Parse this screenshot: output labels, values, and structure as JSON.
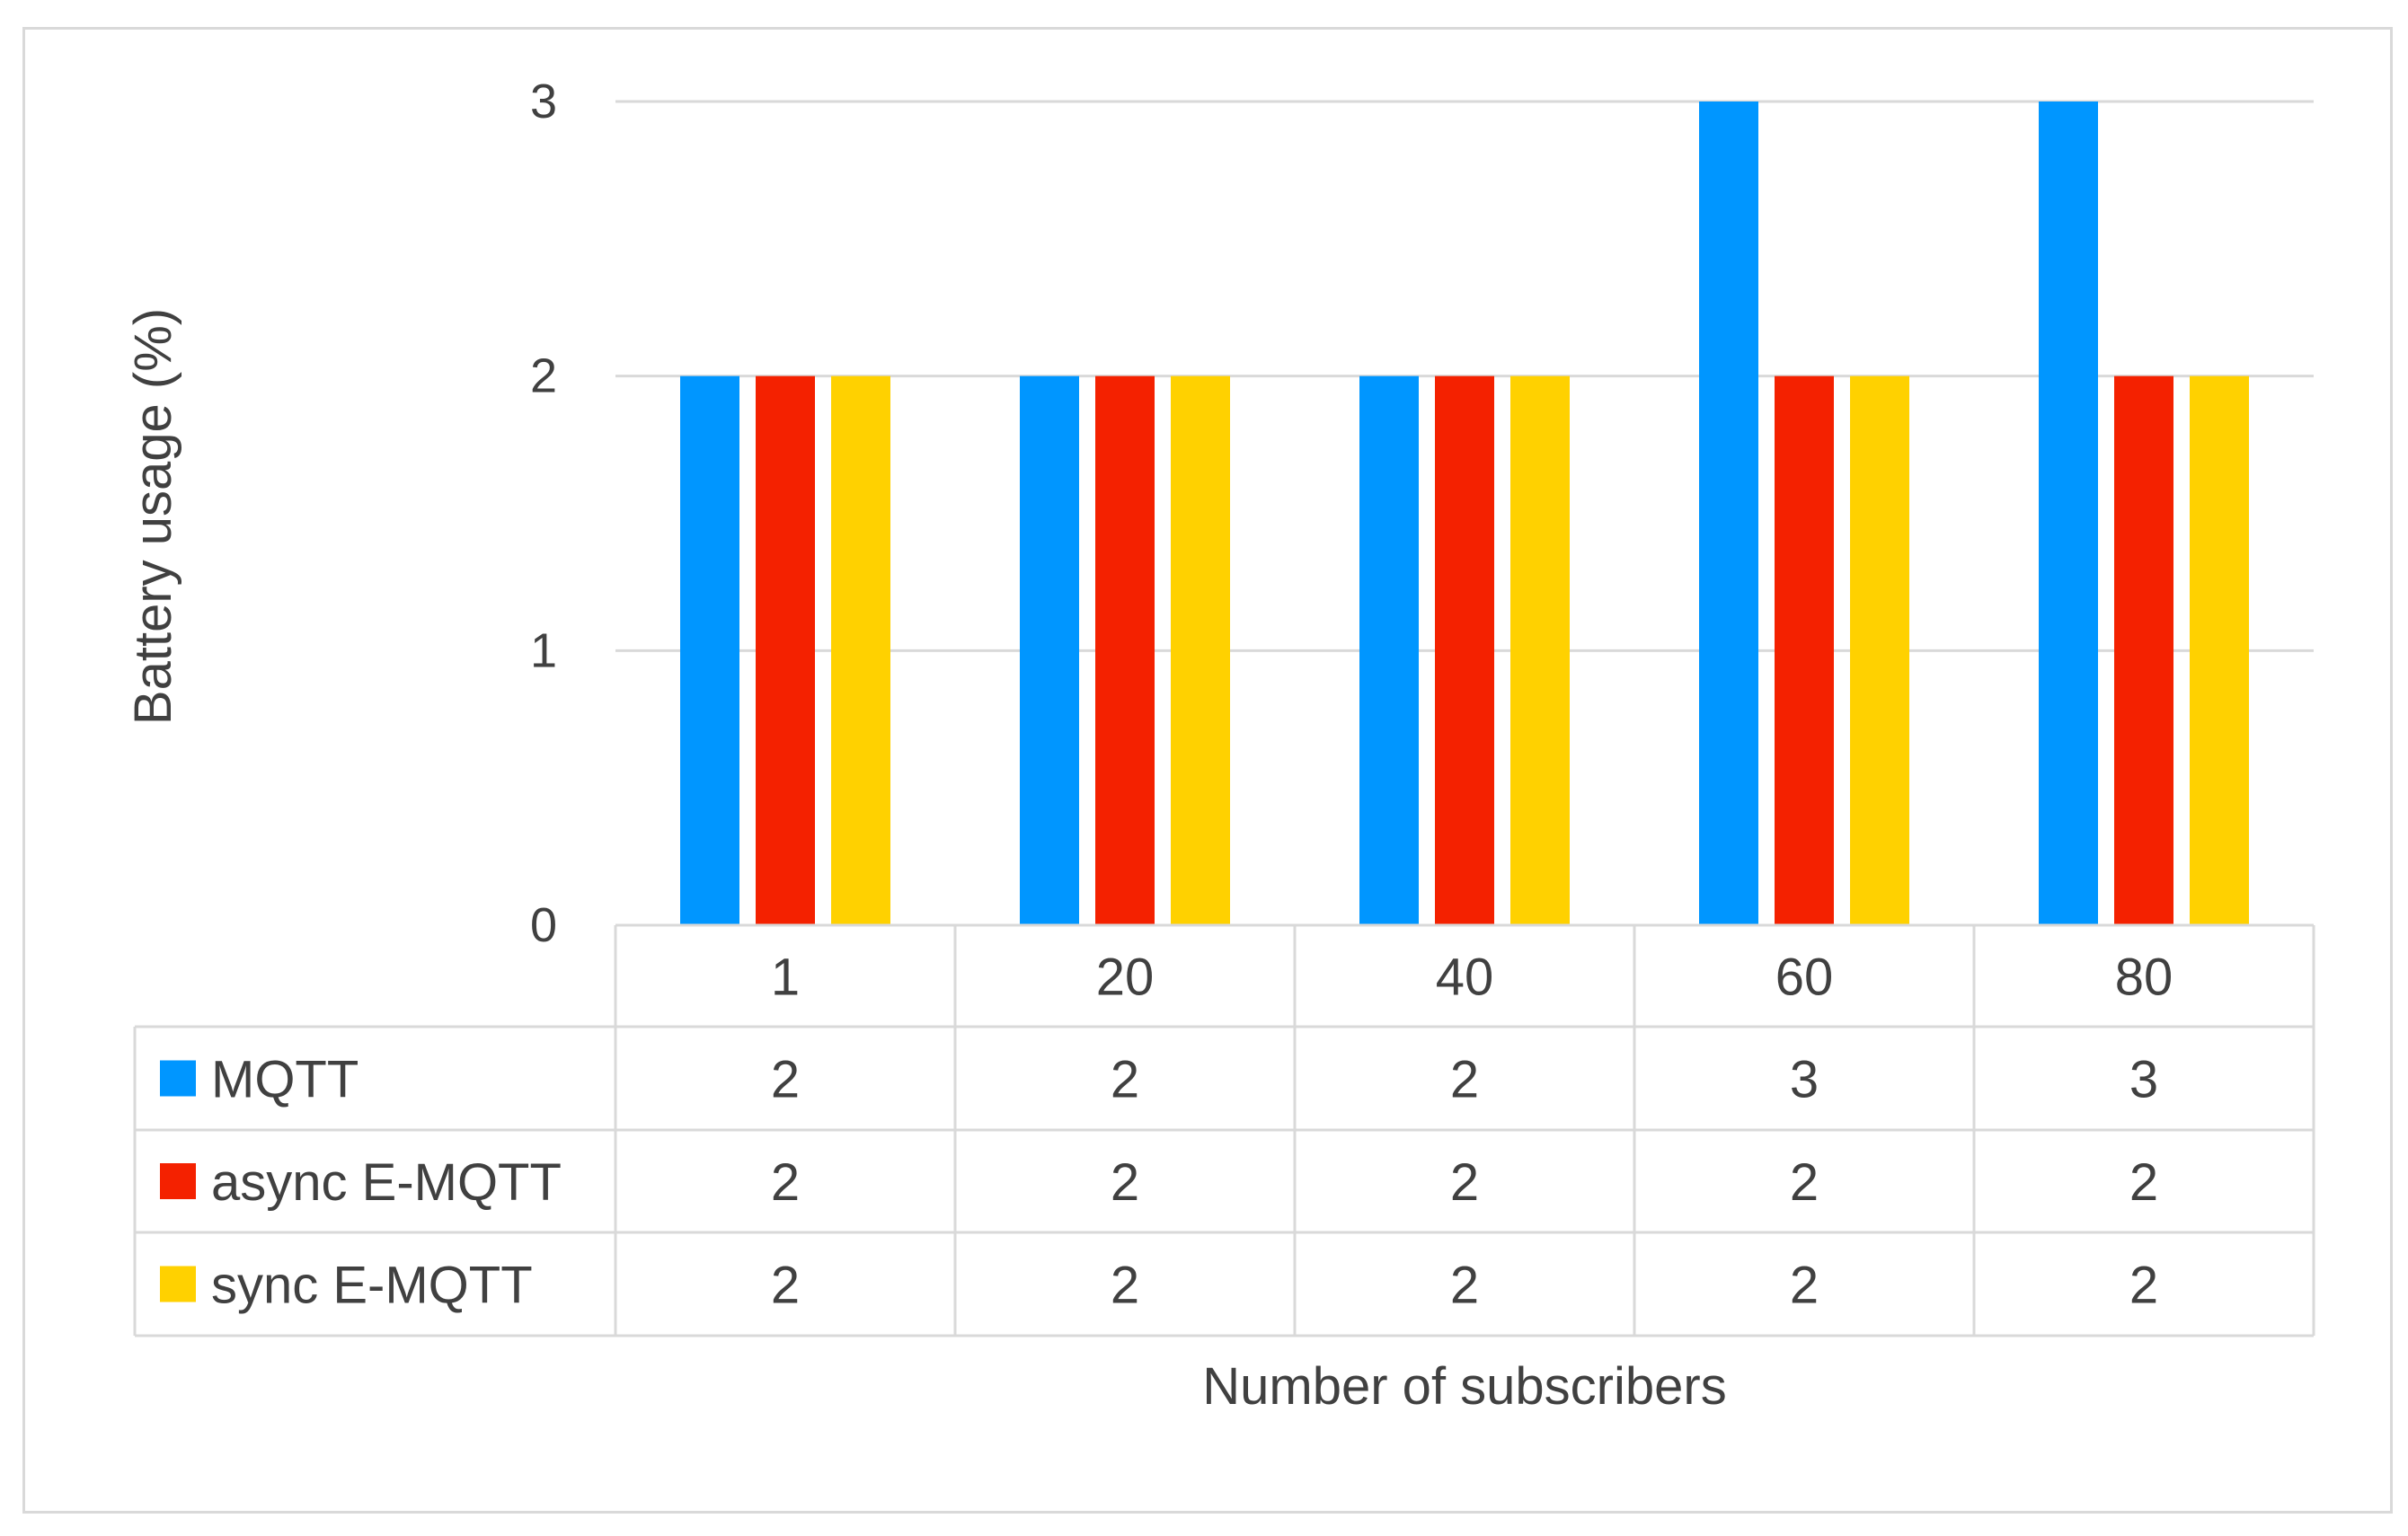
{
  "chart_data": {
    "type": "bar",
    "title": "",
    "xlabel": "Number of subscribers",
    "ylabel": "Battery usage (%)",
    "categories": [
      "1",
      "20",
      "40",
      "60",
      "80"
    ],
    "ylim": [
      0,
      3
    ],
    "yticks": [
      "0",
      "1",
      "2",
      "3"
    ],
    "grid": true,
    "legend": "data-table",
    "series": [
      {
        "name": "MQTT",
        "values": [
          2,
          2,
          2,
          3,
          3
        ],
        "color": "#0096FF"
      },
      {
        "name": "async E-MQTT",
        "values": [
          2,
          2,
          2,
          2,
          2
        ],
        "color": "#F42100"
      },
      {
        "name": "sync E-MQTT",
        "values": [
          2,
          2,
          2,
          2,
          2
        ],
        "color": "#FFD100"
      }
    ]
  }
}
